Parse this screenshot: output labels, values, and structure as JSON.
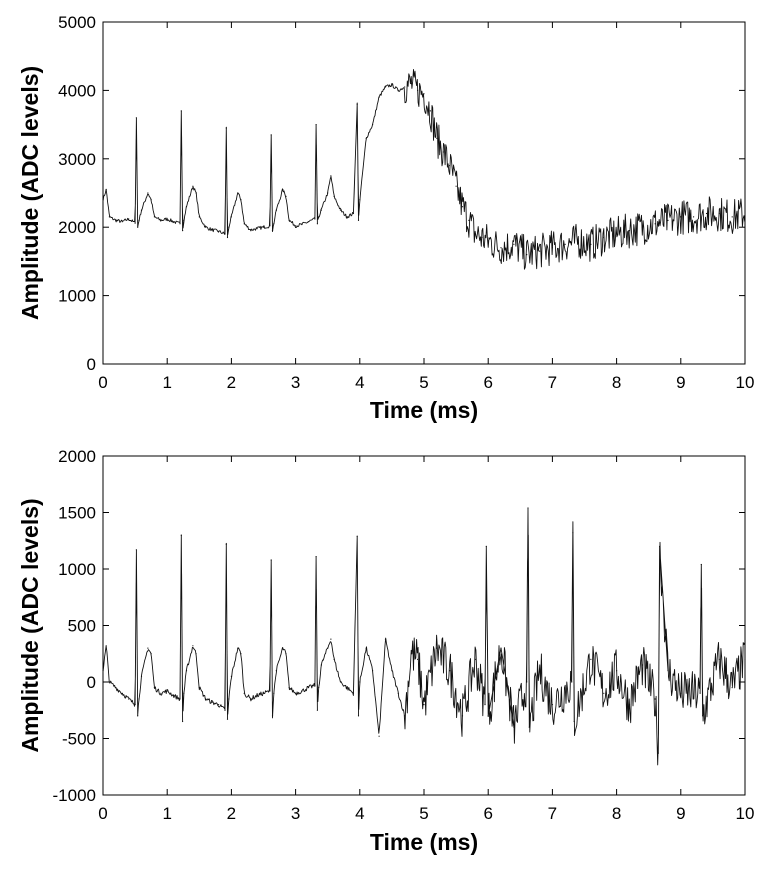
{
  "chart_data": [
    {
      "type": "line",
      "xlabel": "Time (ms)",
      "ylabel": "Amplitude (ADC levels)",
      "xlim": [
        0,
        10
      ],
      "ylim": [
        0,
        5000
      ],
      "xticks": [
        0,
        1,
        2,
        3,
        4,
        5,
        6,
        7,
        8,
        9,
        10
      ],
      "yticks": [
        0,
        1000,
        2000,
        3000,
        4000,
        5000
      ],
      "grid": false,
      "series": [
        {
          "x": [
            0,
            0.05,
            0.1,
            0.2,
            0.3,
            0.4,
            0.5,
            0.52,
            0.54,
            0.56,
            0.6,
            0.7,
            0.75,
            0.8,
            0.9,
            1.0,
            1.1,
            1.2,
            1.22,
            1.24,
            1.26,
            1.3,
            1.4,
            1.45,
            1.5,
            1.6,
            1.7,
            1.8,
            1.9,
            1.92,
            1.94,
            1.96,
            2.0,
            2.1,
            2.15,
            2.2,
            2.3,
            2.4,
            2.5,
            2.6,
            2.62,
            2.64,
            2.66,
            2.7,
            2.8,
            2.85,
            2.9,
            3.0,
            3.1,
            3.2,
            3.3,
            3.32,
            3.34,
            3.36,
            3.4,
            3.5,
            3.55,
            3.6,
            3.7,
            3.8,
            3.9,
            3.96,
            3.98,
            4.0,
            4.1,
            4.2,
            4.3,
            4.4,
            4.5,
            4.6,
            4.7,
            4.8,
            4.9,
            5.0,
            5.1,
            5.2,
            5.3,
            5.4,
            5.5,
            5.6,
            5.7,
            5.8,
            5.9,
            6.0,
            6.2,
            6.4,
            6.6,
            6.8,
            7.0,
            7.2,
            7.4,
            7.6,
            7.8,
            8.0,
            8.2,
            8.4,
            8.6,
            8.8,
            9.0,
            9.2,
            9.4,
            9.6,
            9.8,
            10.0
          ],
          "y": [
            2400,
            2550,
            2150,
            2100,
            2080,
            2120,
            2060,
            3600,
            2000,
            2100,
            2250,
            2500,
            2400,
            2150,
            2100,
            2120,
            2080,
            2050,
            3700,
            1950,
            2100,
            2300,
            2600,
            2500,
            2150,
            2000,
            1960,
            1940,
            1900,
            3450,
            1850,
            2000,
            2150,
            2500,
            2400,
            2050,
            1960,
            1980,
            2000,
            2020,
            3350,
            1950,
            2050,
            2250,
            2550,
            2450,
            2100,
            2020,
            2040,
            2080,
            2120,
            3500,
            2050,
            2150,
            2250,
            2500,
            2750,
            2450,
            2250,
            2150,
            2200,
            3800,
            2100,
            2400,
            3300,
            3500,
            3900,
            4050,
            4080,
            4000,
            4050,
            4100,
            4000,
            3950,
            3700,
            3300,
            3100,
            2900,
            2600,
            2300,
            2100,
            1900,
            1850,
            1800,
            1700,
            1750,
            1600,
            1650,
            1700,
            1750,
            1800,
            1750,
            1850,
            1900,
            1950,
            2000,
            2050,
            2100,
            2150,
            2150,
            2200,
            2200,
            2150,
            2200
          ]
        }
      ]
    },
    {
      "type": "line",
      "xlabel": "Time (ms)",
      "ylabel": "Amplitude (ADC levels)",
      "xlim": [
        0,
        10
      ],
      "ylim": [
        -1000,
        2000
      ],
      "xticks": [
        0,
        1,
        2,
        3,
        4,
        5,
        6,
        7,
        8,
        9,
        10
      ],
      "yticks": [
        -1000,
        -500,
        0,
        500,
        1000,
        1500,
        2000
      ],
      "grid": false,
      "series": [
        {
          "x": [
            0,
            0.05,
            0.1,
            0.2,
            0.3,
            0.4,
            0.5,
            0.52,
            0.54,
            0.56,
            0.6,
            0.7,
            0.75,
            0.8,
            0.9,
            1.0,
            1.1,
            1.2,
            1.22,
            1.24,
            1.26,
            1.3,
            1.4,
            1.45,
            1.5,
            1.6,
            1.7,
            1.8,
            1.9,
            1.92,
            1.94,
            1.96,
            2.0,
            2.1,
            2.15,
            2.2,
            2.3,
            2.4,
            2.5,
            2.6,
            2.62,
            2.64,
            2.66,
            2.7,
            2.8,
            2.85,
            2.9,
            3.0,
            3.1,
            3.2,
            3.3,
            3.32,
            3.34,
            3.36,
            3.4,
            3.5,
            3.55,
            3.6,
            3.7,
            3.8,
            3.9,
            3.96,
            3.98,
            4.0,
            4.1,
            4.2,
            4.3,
            4.4,
            4.5,
            4.6,
            4.7,
            4.8,
            4.9,
            5.0,
            5.2,
            5.4,
            5.6,
            5.8,
            5.95,
            5.97,
            6.0,
            6.2,
            6.4,
            6.6,
            6.62,
            6.64,
            6.8,
            7.0,
            7.3,
            7.32,
            7.34,
            7.6,
            7.8,
            8.0,
            8.2,
            8.4,
            8.6,
            8.65,
            8.67,
            8.8,
            9.0,
            9.3,
            9.32,
            9.34,
            9.6,
            9.8,
            10.0
          ],
          "y": [
            100,
            320,
            0,
            -50,
            -100,
            -150,
            -200,
            1170,
            -300,
            -150,
            50,
            300,
            250,
            -50,
            -100,
            -80,
            -120,
            -150,
            1300,
            -350,
            -100,
            100,
            320,
            250,
            -50,
            -150,
            -180,
            -200,
            -250,
            1220,
            -330,
            -150,
            50,
            300,
            250,
            -100,
            -150,
            -120,
            -100,
            -80,
            1080,
            -300,
            -100,
            100,
            300,
            250,
            -50,
            -100,
            -80,
            -50,
            -30,
            1110,
            -250,
            -50,
            150,
            300,
            380,
            200,
            0,
            -50,
            -100,
            1290,
            -300,
            0,
            300,
            100,
            -480,
            380,
            100,
            -100,
            -300,
            250,
            200,
            -200,
            300,
            100,
            -300,
            200,
            -200,
            1200,
            -300,
            300,
            -400,
            0,
            1540,
            -400,
            100,
            -200,
            0,
            1320,
            -350,
            200,
            -100,
            100,
            -200,
            150,
            -150,
            -630,
            1200,
            100,
            -100,
            -100,
            1040,
            -300,
            200,
            -50,
            200
          ]
        }
      ]
    }
  ]
}
